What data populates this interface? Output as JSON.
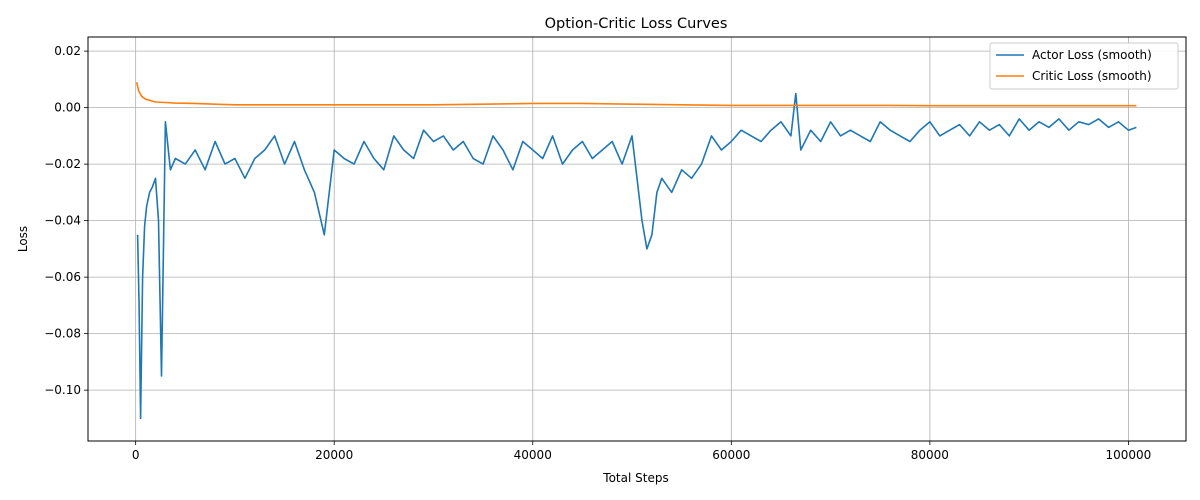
{
  "chart_data": {
    "type": "line",
    "title": "Option-Critic Loss Curves",
    "xlabel": "Total Steps",
    "ylabel": "Loss",
    "xlim": [
      -4800,
      105800
    ],
    "ylim": [
      -0.118,
      0.025
    ],
    "xticks": [
      0,
      20000,
      40000,
      60000,
      80000,
      100000
    ],
    "xtick_labels": [
      "0",
      "20000",
      "40000",
      "60000",
      "80000",
      "100000"
    ],
    "yticks": [
      -0.1,
      -0.08,
      -0.06,
      -0.04,
      -0.02,
      0.0,
      0.02
    ],
    "ytick_labels": [
      "−0.10",
      "−0.08",
      "−0.06",
      "−0.04",
      "−0.02",
      "0.00",
      "0.02"
    ],
    "grid": true,
    "legend_position": "top-right",
    "series": [
      {
        "name": "Actor Loss (smooth)",
        "color": "#1f77b4",
        "x": [
          200,
          350,
          500,
          700,
          900,
          1100,
          1400,
          1700,
          2000,
          2300,
          2600,
          3000,
          3500,
          4000,
          5000,
          6000,
          7000,
          8000,
          9000,
          10000,
          11000,
          12000,
          13000,
          14000,
          15000,
          16000,
          17000,
          18000,
          19000,
          20000,
          21000,
          22000,
          23000,
          24000,
          25000,
          26000,
          27000,
          28000,
          29000,
          30000,
          31000,
          32000,
          33000,
          34000,
          35000,
          36000,
          37000,
          38000,
          39000,
          40000,
          41000,
          42000,
          43000,
          44000,
          45000,
          46000,
          47000,
          48000,
          49000,
          50000,
          51000,
          51500,
          52000,
          52500,
          53000,
          54000,
          55000,
          56000,
          57000,
          58000,
          59000,
          60000,
          61000,
          62000,
          63000,
          64000,
          65000,
          66000,
          66500,
          67000,
          68000,
          69000,
          70000,
          71000,
          72000,
          73000,
          74000,
          75000,
          76000,
          77000,
          78000,
          79000,
          80000,
          81000,
          82000,
          83000,
          84000,
          85000,
          86000,
          87000,
          88000,
          89000,
          90000,
          91000,
          92000,
          93000,
          94000,
          95000,
          96000,
          97000,
          98000,
          99000,
          100000,
          100800
        ],
        "values": [
          -0.045,
          -0.07,
          -0.11,
          -0.06,
          -0.042,
          -0.035,
          -0.03,
          -0.028,
          -0.025,
          -0.04,
          -0.095,
          -0.005,
          -0.022,
          -0.018,
          -0.02,
          -0.015,
          -0.022,
          -0.012,
          -0.02,
          -0.018,
          -0.025,
          -0.018,
          -0.015,
          -0.01,
          -0.02,
          -0.012,
          -0.022,
          -0.03,
          -0.045,
          -0.015,
          -0.018,
          -0.02,
          -0.012,
          -0.018,
          -0.022,
          -0.01,
          -0.015,
          -0.018,
          -0.008,
          -0.012,
          -0.01,
          -0.015,
          -0.012,
          -0.018,
          -0.02,
          -0.01,
          -0.015,
          -0.022,
          -0.012,
          -0.015,
          -0.018,
          -0.01,
          -0.02,
          -0.015,
          -0.012,
          -0.018,
          -0.015,
          -0.012,
          -0.02,
          -0.01,
          -0.04,
          -0.05,
          -0.045,
          -0.03,
          -0.025,
          -0.03,
          -0.022,
          -0.025,
          -0.02,
          -0.01,
          -0.015,
          -0.012,
          -0.008,
          -0.01,
          -0.012,
          -0.008,
          -0.005,
          -0.01,
          0.005,
          -0.015,
          -0.008,
          -0.012,
          -0.005,
          -0.01,
          -0.008,
          -0.01,
          -0.012,
          -0.005,
          -0.008,
          -0.01,
          -0.012,
          -0.008,
          -0.005,
          -0.01,
          -0.008,
          -0.006,
          -0.01,
          -0.005,
          -0.008,
          -0.006,
          -0.01,
          -0.004,
          -0.008,
          -0.005,
          -0.007,
          -0.004,
          -0.008,
          -0.005,
          -0.006,
          -0.004,
          -0.007,
          -0.005,
          -0.008,
          -0.007
        ]
      },
      {
        "name": "Critic Loss (smooth)",
        "color": "#ff7f0e",
        "x": [
          100,
          300,
          600,
          1000,
          1500,
          2000,
          3000,
          4000,
          6000,
          8000,
          10000,
          15000,
          20000,
          25000,
          30000,
          35000,
          40000,
          45000,
          50000,
          55000,
          60000,
          65000,
          70000,
          75000,
          80000,
          85000,
          90000,
          95000,
          100000,
          100800
        ],
        "values": [
          0.009,
          0.006,
          0.004,
          0.003,
          0.0025,
          0.002,
          0.0018,
          0.0016,
          0.0015,
          0.0012,
          0.001,
          0.001,
          0.001,
          0.001,
          0.001,
          0.0012,
          0.0015,
          0.0015,
          0.0012,
          0.001,
          0.0008,
          0.0008,
          0.0008,
          0.0008,
          0.0007,
          0.0007,
          0.0007,
          0.0007,
          0.0007,
          0.0007
        ]
      }
    ]
  }
}
